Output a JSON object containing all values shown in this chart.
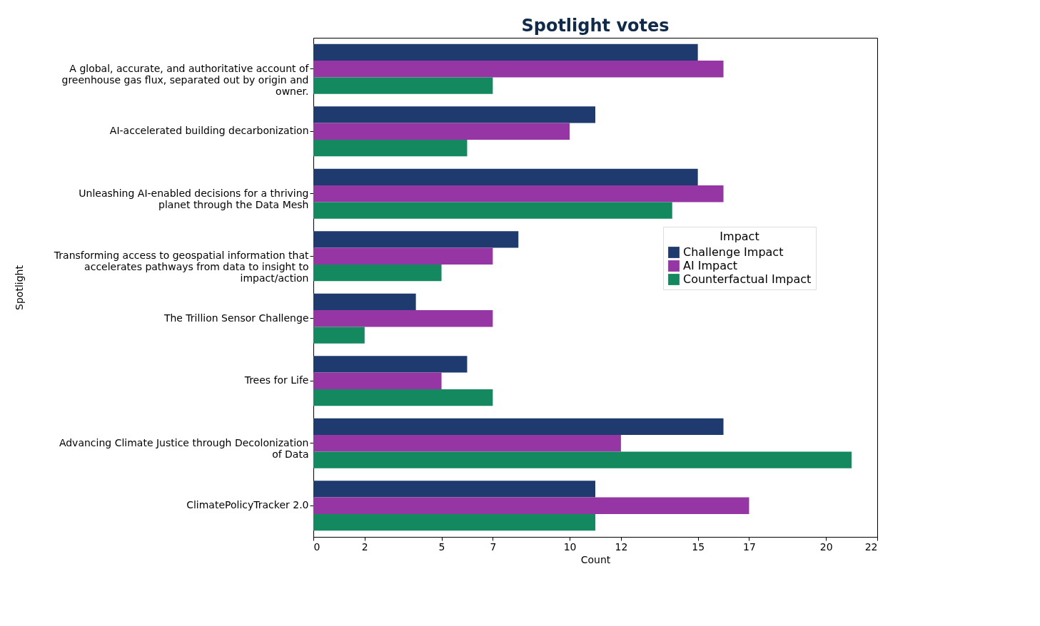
{
  "chart_data": {
    "type": "bar",
    "orientation": "horizontal",
    "title": "Spotlight votes",
    "xlabel": "Count",
    "ylabel": "Spotlight",
    "legend_title": "Impact",
    "categories": [
      "A global, accurate, and authoritative account of greenhouse gas flux, separated out by origin and owner.",
      "AI-accelerated building decarbonization",
      "Unleashing AI-enabled decisions for a thriving planet through the Data Mesh",
      "Transforming access to geospatial information that accelerates pathways from data to insight to impact/action",
      "The Trillion Sensor Challenge",
      "Trees for Life",
      "Advancing Climate Justice through Decolonization of Data",
      "ClimatePolicyTracker 2.0"
    ],
    "series": [
      {
        "name": "Challenge Impact",
        "color": "#1f3a6e",
        "values": [
          15,
          11,
          15,
          8,
          4,
          6,
          16,
          11
        ]
      },
      {
        "name": "AI Impact",
        "color": "#9636a4",
        "values": [
          16,
          10,
          16,
          7,
          7,
          5,
          12,
          17
        ]
      },
      {
        "name": "Counterfactual Impact",
        "color": "#14885f",
        "values": [
          7,
          6,
          14,
          5,
          2,
          7,
          21,
          11
        ]
      }
    ],
    "xlim": [
      0,
      22
    ],
    "xticks": [
      0,
      2,
      5,
      7,
      10,
      12,
      15,
      17,
      20,
      22
    ],
    "legend": "right",
    "grid": false
  }
}
